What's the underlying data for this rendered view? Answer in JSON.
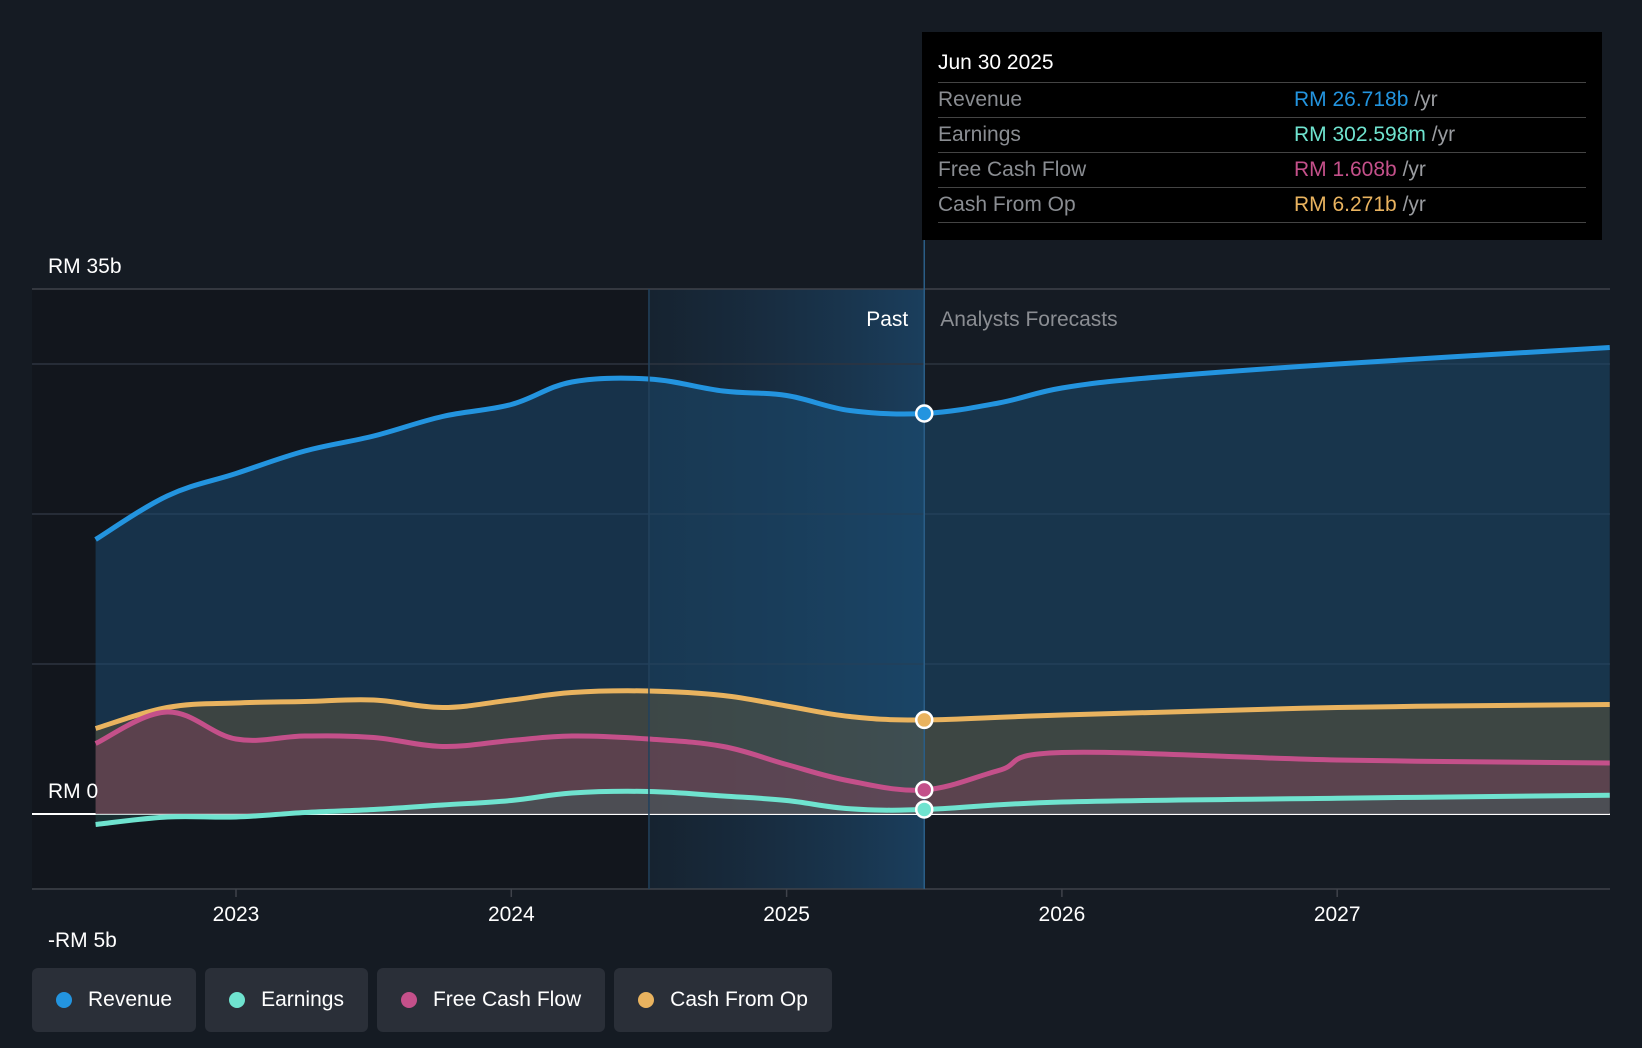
{
  "chart_data": {
    "type": "area",
    "currency": "RM",
    "y_ticks": [
      {
        "value": 35,
        "label": "RM 35b"
      },
      {
        "value": 0,
        "label": "RM 0"
      },
      {
        "value": -5,
        "label": "-RM 5b"
      }
    ],
    "gridlines": [
      35,
      30,
      20,
      10,
      0,
      -5
    ],
    "ylim": [
      -5,
      35
    ],
    "y_unit": "billions",
    "x_ticks": [
      {
        "value": 2023,
        "label": "2023"
      },
      {
        "value": 2024,
        "label": "2024"
      },
      {
        "value": 2025,
        "label": "2025"
      },
      {
        "value": 2026,
        "label": "2026"
      },
      {
        "value": 2027,
        "label": "2027"
      }
    ],
    "xlim": [
      2022.27,
      2028.0
    ],
    "past_label": "Past",
    "forecast_label": "Analysts Forecasts",
    "past_boundary": 2025.5,
    "highlight_start": 2024.5,
    "series": [
      {
        "name": "Revenue",
        "color": "#2394df",
        "x": [
          2022.49,
          2022.75,
          2023.0,
          2023.25,
          2023.5,
          2023.75,
          2024.0,
          2024.22,
          2024.5,
          2024.77,
          2025.0,
          2025.23,
          2025.5,
          2025.77,
          2026.0,
          2026.33,
          2027.0,
          2027.99
        ],
        "values": [
          18.3,
          21.2,
          22.7,
          24.2,
          25.2,
          26.5,
          27.3,
          28.8,
          29.0,
          28.2,
          27.9,
          26.9,
          26.7,
          27.4,
          28.4,
          29.1,
          30.0,
          31.1
        ]
      },
      {
        "name": "Cash From Op",
        "color": "#e9b35f",
        "x": [
          2022.49,
          2022.75,
          2023.0,
          2023.25,
          2023.5,
          2023.75,
          2024.0,
          2024.22,
          2024.5,
          2024.77,
          2025.0,
          2025.23,
          2025.5,
          2026.0,
          2027.0,
          2027.99
        ],
        "values": [
          5.7,
          7.1,
          7.4,
          7.5,
          7.6,
          7.1,
          7.6,
          8.1,
          8.2,
          7.9,
          7.2,
          6.5,
          6.271,
          6.6,
          7.1,
          7.3
        ]
      },
      {
        "name": "Free Cash Flow",
        "color": "#c4508a",
        "x": [
          2022.49,
          2022.75,
          2023.0,
          2023.25,
          2023.5,
          2023.75,
          2024.0,
          2024.22,
          2024.5,
          2024.77,
          2025.0,
          2025.23,
          2025.5,
          2025.77,
          2026.0,
          2027.0,
          2027.99
        ],
        "values": [
          4.7,
          6.8,
          5.0,
          5.2,
          5.1,
          4.5,
          4.9,
          5.2,
          5.0,
          4.5,
          3.3,
          2.2,
          1.608,
          2.9,
          4.1,
          3.6,
          3.4
        ]
      },
      {
        "name": "Earnings",
        "color": "#6fe3cf",
        "x": [
          2022.49,
          2022.75,
          2023.0,
          2023.25,
          2023.5,
          2023.75,
          2024.0,
          2024.22,
          2024.5,
          2024.77,
          2025.0,
          2025.23,
          2025.5,
          2026.0,
          2027.0,
          2027.99
        ],
        "values": [
          -0.7,
          -0.2,
          -0.2,
          0.1,
          0.3,
          0.6,
          0.9,
          1.4,
          1.5,
          1.2,
          0.9,
          0.35,
          0.303,
          0.8,
          1.05,
          1.25
        ]
      }
    ]
  },
  "tooltip": {
    "date": "Jun 30 2025",
    "rows": [
      {
        "label": "Revenue",
        "value": "RM 26.718b",
        "unit": "/yr",
        "color": "#2394df"
      },
      {
        "label": "Earnings",
        "value": "RM 302.598m",
        "unit": "/yr",
        "color": "#6fe3cf"
      },
      {
        "label": "Free Cash Flow",
        "value": "RM 1.608b",
        "unit": "/yr",
        "color": "#c4508a"
      },
      {
        "label": "Cash From Op",
        "value": "RM 6.271b",
        "unit": "/yr",
        "color": "#e9b35f"
      }
    ]
  },
  "legend": [
    {
      "label": "Revenue",
      "color": "#2394df"
    },
    {
      "label": "Earnings",
      "color": "#6fe3cf"
    },
    {
      "label": "Free Cash Flow",
      "color": "#c4508a"
    },
    {
      "label": "Cash From Op",
      "color": "#e9b35f"
    }
  ]
}
